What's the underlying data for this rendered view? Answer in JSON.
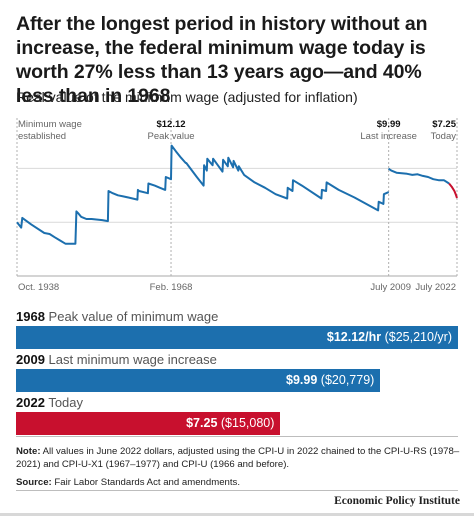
{
  "headline": "After the longest period in history without an increase, the federal minimum wage today is worth 27% less than 13 years ago—and 40% less than in 1968",
  "subtitle": "Real value of the minimum wage (adjusted for inflation)",
  "colors": {
    "blue": "#1c6fae",
    "red": "#c8102e",
    "grid": "#d9d9d9",
    "dash": "#b0b0b0"
  },
  "chart_data": [
    {
      "type": "line",
      "title": "Real value of the minimum wage (adjusted for inflation)",
      "x_tick_labels": [
        "Oct. 1938",
        "Feb. 1968",
        "July 2009",
        "July 2022"
      ],
      "annotations": [
        {
          "line1": "Minimum wage",
          "line2": "established"
        },
        {
          "line1": "$12.12",
          "line2": "Peak value"
        },
        {
          "line1": "$9.99",
          "line2": "Last increase"
        },
        {
          "line1": "$7.25",
          "line2": "Today"
        }
      ],
      "ylim": [
        0,
        14.5
      ],
      "grid": "horizontal",
      "series": [
        {
          "color": "#1c6fae",
          "x": [
            1938.8,
            1939.6,
            1939.8,
            1941.5,
            1944,
            1945,
            1946,
            1947,
            1948,
            1949,
            1949.9,
            1950.1,
            1950.5,
            1951,
            1952,
            1953,
            1955,
            1956.1,
            1956.2,
            1957,
            1958,
            1959,
            1960,
            1961.7,
            1961.8,
            1962,
            1963.7,
            1963.8,
            1965,
            1966,
            1967.0,
            1967.1,
            1968.1,
            1968.2,
            1969,
            1970,
            1970.9,
            1971,
            1973,
            1974.3,
            1974.4,
            1974.9,
            1975.0,
            1975.5,
            1976.0,
            1976.1,
            1977,
            1977.9,
            1978.0,
            1978.9,
            1979.0,
            1979.9,
            1980.0,
            1980.9,
            1981.0,
            1982,
            1984,
            1986,
            1988,
            1990.2,
            1990.3,
            1991.2,
            1991.3,
            1993,
            1996.7,
            1996.8,
            1997.6,
            1997.7,
            2000,
            2003,
            2006,
            2007.5,
            2007.6,
            2008.5,
            2008.6,
            2009.5
          ],
          "y": [
            5.0,
            4.5,
            5.4,
            4.8,
            4.0,
            3.9,
            3.6,
            3.3,
            3.0,
            3.0,
            3.0,
            6.0,
            5.8,
            5.5,
            5.3,
            5.3,
            5.2,
            5.1,
            7.9,
            7.7,
            7.5,
            7.4,
            7.3,
            7.1,
            8.0,
            7.9,
            7.7,
            8.6,
            8.4,
            8.2,
            8.0,
            9.2,
            9.0,
            12.12,
            11.6,
            11.0,
            10.5,
            10.5,
            9.2,
            8.4,
            10.3,
            9.8,
            10.9,
            10.6,
            10.3,
            10.9,
            10.3,
            9.7,
            10.8,
            10.2,
            11.0,
            10.1,
            10.7,
            9.8,
            10.2,
            9.4,
            8.7,
            8.2,
            7.6,
            7.2,
            8.2,
            7.9,
            8.9,
            8.4,
            7.2,
            8.0,
            7.9,
            8.7,
            8.0,
            7.3,
            6.5,
            6.1,
            6.9,
            6.7,
            7.6,
            7.8
          ]
        },
        {
          "color": "#1c6fae",
          "x": [
            2009.5,
            2009.6,
            2010,
            2011,
            2012,
            2013,
            2014,
            2015,
            2016,
            2017,
            2018,
            2019,
            2020,
            2021
          ],
          "y": [
            9.99,
            9.93,
            9.8,
            9.6,
            9.55,
            9.5,
            9.4,
            9.45,
            9.3,
            9.2,
            9.0,
            8.9,
            8.9,
            8.6
          ]
        },
        {
          "color": "#c8102e",
          "x": [
            2021,
            2021.5,
            2022.0,
            2022.3,
            2022.5
          ],
          "y": [
            8.6,
            8.3,
            7.9,
            7.55,
            7.25
          ]
        }
      ]
    },
    {
      "type": "bar",
      "orientation": "horizontal",
      "categories": [
        "1968",
        "2009",
        "2022"
      ],
      "descriptions": [
        "Peak value of minimum wage",
        "Last minimum wage increase",
        "Today"
      ],
      "values": [
        12.12,
        9.99,
        7.25
      ],
      "annual_values": [
        "$25,210/yr",
        "$20,779",
        "$15,080"
      ],
      "value_labels": [
        "$12.12/hr",
        "$9.99",
        "$7.25"
      ],
      "colors": [
        "#1c6fae",
        "#1c6fae",
        "#c8102e"
      ],
      "xlim": [
        0,
        12.12
      ]
    }
  ],
  "bar_labels": [
    {
      "year": "1968",
      "description": "Peak value of minimum wage",
      "value": "$12.12/hr",
      "annual": "($25,210/yr)"
    },
    {
      "year": "2009",
      "description": "Last minimum wage increase",
      "value": "$9.99",
      "annual": "($20,779)"
    },
    {
      "year": "2022",
      "description": "Today",
      "value": "$7.25",
      "annual": "($15,080)"
    }
  ],
  "note": {
    "label": "Note:",
    "text": "All values in June 2022 dollars, adjusted using the CPI-U in 2022 chained to the CPI-U-RS (1978–2021) and CPI-U-X1 (1967–1977) and CPI-U (1966 and before)."
  },
  "source": {
    "label": "Source:",
    "text": "Fair Labor Standards Act and amendments."
  },
  "brand": "Economic Policy Institute"
}
